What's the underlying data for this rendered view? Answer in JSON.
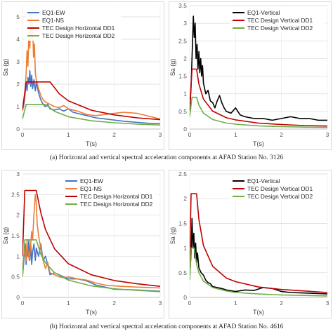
{
  "captions": {
    "a": "(a)   Horizontal and vertical spectral acceleration components at AFAD Station No. 3126",
    "b": "(b)   Horizontal and vertical spectral acceleration components at AFAD Station No. 4616"
  },
  "colors": {
    "eq_ew": "#4472C4",
    "eq_ns": "#ED7D31",
    "eq_vertical": "#000000",
    "dd1": "#C00000",
    "dd2": "#70AD47"
  },
  "chart_data": [
    {
      "id": "a-horizontal",
      "type": "line",
      "xlabel": "T(s)",
      "ylabel": "Sa (g)",
      "xlim": [
        0,
        3
      ],
      "ylim": [
        0,
        5.5
      ],
      "xticks": [
        0,
        1,
        2,
        3
      ],
      "yticks": [
        0,
        1,
        2,
        3,
        4,
        5
      ],
      "legend_position": "top-left",
      "series": [
        {
          "name": "EQ1-EW",
          "color": "#4472C4",
          "x": [
            0,
            0.04,
            0.06,
            0.08,
            0.1,
            0.12,
            0.14,
            0.16,
            0.18,
            0.2,
            0.22,
            0.25,
            0.28,
            0.3,
            0.35,
            0.4,
            0.45,
            0.5,
            0.55,
            0.6,
            0.7,
            0.8,
            0.9,
            1.0,
            1.1,
            1.2,
            1.4,
            1.6,
            1.8,
            2.0,
            2.2,
            2.5,
            2.8,
            3.0
          ],
          "y": [
            0.8,
            1.2,
            1.6,
            2.1,
            1.7,
            2.3,
            2.0,
            2.6,
            1.9,
            2.4,
            1.8,
            2.2,
            1.7,
            2.1,
            1.6,
            1.3,
            1.1,
            1.0,
            1.1,
            0.9,
            0.85,
            0.9,
            0.8,
            0.9,
            0.75,
            0.7,
            0.6,
            0.5,
            0.45,
            0.4,
            0.35,
            0.3,
            0.25,
            0.25
          ]
        },
        {
          "name": "EQ1-NS",
          "color": "#ED7D31",
          "x": [
            0,
            0.05,
            0.08,
            0.1,
            0.12,
            0.14,
            0.16,
            0.18,
            0.2,
            0.22,
            0.24,
            0.26,
            0.28,
            0.3,
            0.35,
            0.4,
            0.45,
            0.5,
            0.6,
            0.7,
            0.8,
            0.9,
            1.0,
            1.1,
            1.2,
            1.4,
            1.6,
            1.8,
            2.0,
            2.2,
            2.5,
            2.8,
            3.0
          ],
          "y": [
            0.8,
            1.5,
            2.5,
            3.5,
            2.8,
            4.3,
            3.6,
            5.2,
            4.0,
            4.7,
            3.2,
            3.8,
            2.5,
            2.2,
            1.8,
            1.5,
            1.3,
            1.2,
            1.1,
            1.0,
            0.95,
            1.05,
            0.9,
            0.85,
            0.8,
            0.65,
            0.6,
            0.65,
            0.7,
            0.75,
            0.7,
            0.55,
            0.45
          ]
        },
        {
          "name": "TEC Design Horizontal DD1",
          "color": "#C00000",
          "x": [
            0,
            0.08,
            0.6,
            0.8,
            1.0,
            1.5,
            2.0,
            2.5,
            3.0
          ],
          "y": [
            0.85,
            2.1,
            2.1,
            1.575,
            1.26,
            0.84,
            0.63,
            0.5,
            0.42
          ]
        },
        {
          "name": "TEC Design Horizontal DD2",
          "color": "#70AD47",
          "x": [
            0,
            0.08,
            0.5,
            0.7,
            1.0,
            1.5,
            2.0,
            2.5,
            3.0
          ],
          "y": [
            0.45,
            1.1,
            1.1,
            0.79,
            0.55,
            0.37,
            0.28,
            0.22,
            0.18
          ]
        }
      ]
    },
    {
      "id": "a-vertical",
      "type": "line",
      "xlabel": "T(s)",
      "ylabel": "Sa (g)",
      "xlim": [
        0,
        3
      ],
      "ylim": [
        0,
        3.5
      ],
      "xticks": [
        0,
        1,
        2,
        3
      ],
      "yticks": [
        0,
        0.5,
        1,
        1.5,
        2,
        2.5,
        3,
        3.5
      ],
      "legend_position": "top-right",
      "series": [
        {
          "name": "EQ1-Vertical",
          "color": "#000000",
          "x": [
            0,
            0.03,
            0.05,
            0.07,
            0.08,
            0.1,
            0.12,
            0.14,
            0.16,
            0.18,
            0.2,
            0.22,
            0.24,
            0.26,
            0.28,
            0.3,
            0.35,
            0.4,
            0.45,
            0.5,
            0.55,
            0.6,
            0.65,
            0.7,
            0.75,
            0.8,
            0.9,
            1.0,
            1.05,
            1.1,
            1.2,
            1.4,
            1.6,
            1.8,
            2.0,
            2.2,
            2.4,
            2.6,
            2.8,
            3.0
          ],
          "y": [
            0.5,
            1.2,
            2.0,
            2.8,
            3.2,
            2.6,
            3.0,
            2.0,
            2.4,
            1.7,
            2.2,
            1.6,
            2.0,
            1.5,
            1.8,
            1.3,
            1.0,
            1.1,
            0.8,
            0.75,
            0.6,
            0.8,
            0.95,
            0.75,
            0.6,
            0.5,
            0.45,
            0.6,
            0.5,
            0.4,
            0.35,
            0.3,
            0.3,
            0.25,
            0.3,
            0.35,
            0.3,
            0.3,
            0.25,
            0.25
          ]
        },
        {
          "name": "TEC Design Vertical DD1",
          "color": "#C00000",
          "x": [
            0,
            0.05,
            0.15,
            0.2,
            0.3,
            0.5,
            0.8,
            1.0,
            1.5,
            2.0,
            2.5,
            3.0
          ],
          "y": [
            0.6,
            1.7,
            1.7,
            1.28,
            0.85,
            0.51,
            0.32,
            0.26,
            0.17,
            0.13,
            0.1,
            0.085
          ]
        },
        {
          "name": "TEC Design Vertical DD2",
          "color": "#70AD47",
          "x": [
            0,
            0.05,
            0.15,
            0.2,
            0.3,
            0.5,
            0.8,
            1.0,
            1.5,
            2.0,
            2.5,
            3.0
          ],
          "y": [
            0.35,
            0.9,
            0.9,
            0.68,
            0.45,
            0.27,
            0.17,
            0.14,
            0.09,
            0.07,
            0.055,
            0.045
          ]
        }
      ]
    },
    {
      "id": "b-horizontal",
      "type": "line",
      "xlabel": "T(s)",
      "ylabel": "Sa (g)",
      "xlim": [
        0,
        3
      ],
      "ylim": [
        0,
        3
      ],
      "xticks": [
        0,
        1,
        2,
        3
      ],
      "yticks": [
        0,
        0.5,
        1,
        1.5,
        2,
        2.5,
        3
      ],
      "legend_position": "top-right",
      "series": [
        {
          "name": "EQ1-EW",
          "color": "#4472C4",
          "x": [
            0,
            0.04,
            0.06,
            0.08,
            0.1,
            0.12,
            0.14,
            0.16,
            0.18,
            0.2,
            0.22,
            0.25,
            0.28,
            0.3,
            0.35,
            0.4,
            0.45,
            0.5,
            0.55,
            0.6,
            0.7,
            0.8,
            0.9,
            1.0,
            1.2,
            1.4,
            1.6,
            1.8,
            2.0,
            2.5,
            3.0
          ],
          "y": [
            0.5,
            1.0,
            1.3,
            0.8,
            1.2,
            1.0,
            1.4,
            0.9,
            1.3,
            0.8,
            1.1,
            1.3,
            0.9,
            1.2,
            1.0,
            1.3,
            0.9,
            1.0,
            0.8,
            0.55,
            0.6,
            0.55,
            0.5,
            0.45,
            0.45,
            0.4,
            0.3,
            0.25,
            0.2,
            0.18,
            0.15
          ]
        },
        {
          "name": "EQ1-NS",
          "color": "#ED7D31",
          "x": [
            0,
            0.05,
            0.08,
            0.1,
            0.12,
            0.15,
            0.18,
            0.2,
            0.22,
            0.25,
            0.28,
            0.3,
            0.32,
            0.35,
            0.4,
            0.45,
            0.5,
            0.55,
            0.6,
            0.7,
            0.8,
            0.9,
            1.0,
            1.2,
            1.4,
            1.6,
            1.8,
            2.0,
            2.5,
            3.0
          ],
          "y": [
            0.7,
            1.2,
            0.9,
            1.4,
            1.1,
            0.9,
            1.3,
            1.6,
            1.4,
            2.0,
            2.5,
            2.3,
            1.8,
            1.5,
            1.2,
            0.9,
            0.7,
            0.85,
            0.6,
            0.55,
            0.5,
            0.48,
            0.5,
            0.45,
            0.42,
            0.35,
            0.3,
            0.28,
            0.25,
            0.23
          ]
        },
        {
          "name": "TEC Design Horizontal DD1",
          "color": "#C00000",
          "x": [
            0,
            0.05,
            0.3,
            0.4,
            0.5,
            0.7,
            1.0,
            1.5,
            2.0,
            2.5,
            3.0
          ],
          "y": [
            1.0,
            2.6,
            2.6,
            2.06,
            1.65,
            1.18,
            0.82,
            0.55,
            0.41,
            0.33,
            0.27
          ]
        },
        {
          "name": "TEC Design Horizontal DD2",
          "color": "#70AD47",
          "x": [
            0,
            0.05,
            0.3,
            0.4,
            0.5,
            0.7,
            1.0,
            1.5,
            2.0,
            2.5,
            3.0
          ],
          "y": [
            0.5,
            1.4,
            1.4,
            1.05,
            0.84,
            0.6,
            0.42,
            0.28,
            0.21,
            0.17,
            0.14
          ]
        }
      ]
    },
    {
      "id": "b-vertical",
      "type": "line",
      "xlabel": "T(s)",
      "ylabel": "Sa (g)",
      "xlim": [
        0,
        3
      ],
      "ylim": [
        0,
        2.5
      ],
      "xticks": [
        0,
        1,
        2,
        3
      ],
      "yticks": [
        0,
        0.5,
        1,
        1.5,
        2,
        2.5
      ],
      "legend_position": "top-right",
      "series": [
        {
          "name": "EQ1-Vertical",
          "color": "#000000",
          "x": [
            0,
            0.03,
            0.05,
            0.07,
            0.09,
            0.11,
            0.13,
            0.15,
            0.17,
            0.2,
            0.25,
            0.3,
            0.35,
            0.4,
            0.45,
            0.5,
            0.6,
            0.7,
            0.8,
            1.0,
            1.2,
            1.4,
            1.6,
            1.8,
            2.0,
            2.2,
            2.5,
            2.8,
            3.0
          ],
          "y": [
            0.4,
            0.9,
            1.6,
            1.0,
            1.3,
            0.8,
            1.1,
            0.7,
            0.9,
            0.6,
            0.5,
            0.45,
            0.35,
            0.3,
            0.28,
            0.22,
            0.2,
            0.18,
            0.15,
            0.12,
            0.15,
            0.14,
            0.2,
            0.18,
            0.12,
            0.1,
            0.09,
            0.08,
            0.07
          ]
        },
        {
          "name": "TEC Design Vertical DD1",
          "color": "#C00000",
          "x": [
            0,
            0.03,
            0.15,
            0.2,
            0.3,
            0.5,
            0.8,
            1.0,
            1.5,
            2.0,
            2.5,
            3.0
          ],
          "y": [
            0.7,
            2.1,
            2.1,
            1.58,
            1.05,
            0.63,
            0.39,
            0.32,
            0.21,
            0.16,
            0.13,
            0.1
          ]
        },
        {
          "name": "TEC Design Vertical DD2",
          "color": "#70AD47",
          "x": [
            0,
            0.03,
            0.1,
            0.15,
            0.2,
            0.3,
            0.5,
            0.8,
            1.0,
            1.5,
            2.0,
            2.5,
            3.0
          ],
          "y": [
            0.35,
            1.0,
            1.0,
            0.67,
            0.5,
            0.33,
            0.2,
            0.13,
            0.1,
            0.07,
            0.05,
            0.04,
            0.03
          ]
        }
      ]
    }
  ]
}
